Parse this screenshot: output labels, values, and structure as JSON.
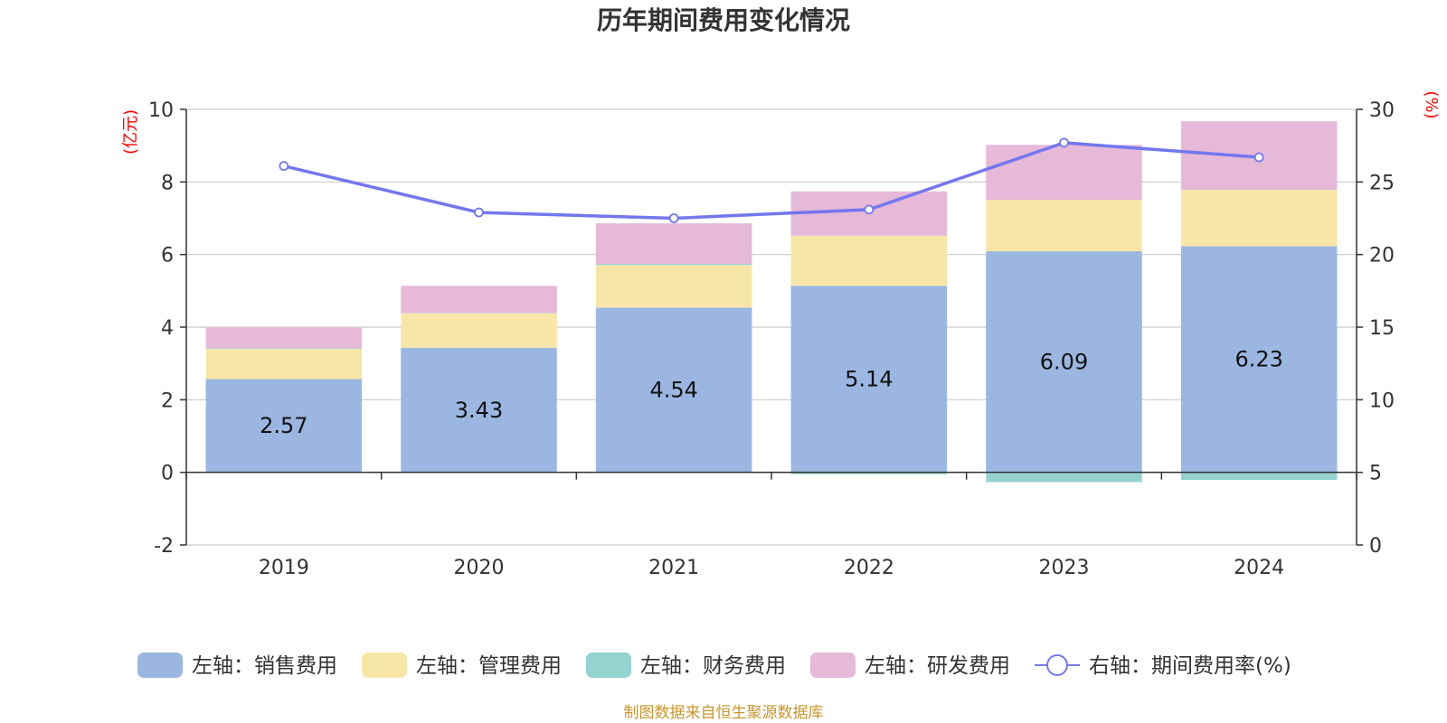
{
  "chart_data": {
    "type": "bar",
    "title": "历年期间费用变化情况",
    "categories": [
      "2019",
      "2020",
      "2021",
      "2022",
      "2023",
      "2024"
    ],
    "left_axis": {
      "unit": "(亿元)",
      "ylim": [
        -2,
        10
      ],
      "ticks": [
        -2,
        0,
        2,
        4,
        6,
        8,
        10
      ]
    },
    "right_axis": {
      "unit": "(%)",
      "ylim": [
        0,
        30
      ],
      "ticks": [
        0,
        5,
        10,
        15,
        20,
        25,
        30
      ]
    },
    "series": [
      {
        "name": "左轴：销售费用",
        "kind": "bar",
        "axis": "left",
        "color": "#9bb7e1",
        "values": [
          2.57,
          3.43,
          4.54,
          5.14,
          6.09,
          6.23
        ],
        "show_labels": true
      },
      {
        "name": "左轴：管理费用",
        "kind": "bar",
        "axis": "left",
        "color": "#f8e6a8",
        "values": [
          0.83,
          0.95,
          1.17,
          1.38,
          1.42,
          1.55
        ]
      },
      {
        "name": "左轴：财务费用",
        "kind": "bar",
        "axis": "left",
        "color": "#95d3d1",
        "values": [
          0.02,
          0.01,
          0.03,
          -0.05,
          -0.27,
          -0.21
        ]
      },
      {
        "name": "左轴：研发费用",
        "kind": "bar",
        "axis": "left",
        "color": "#e6b9d8",
        "values": [
          0.57,
          0.75,
          1.12,
          1.22,
          1.51,
          1.89
        ]
      },
      {
        "name": "右轴：期间费用率(%)",
        "kind": "line",
        "axis": "right",
        "color": "#7377ee",
        "values": [
          26.1,
          22.9,
          22.5,
          23.1,
          27.7,
          26.7
        ]
      }
    ],
    "source": "制图数据来自恒生聚源数据库"
  }
}
